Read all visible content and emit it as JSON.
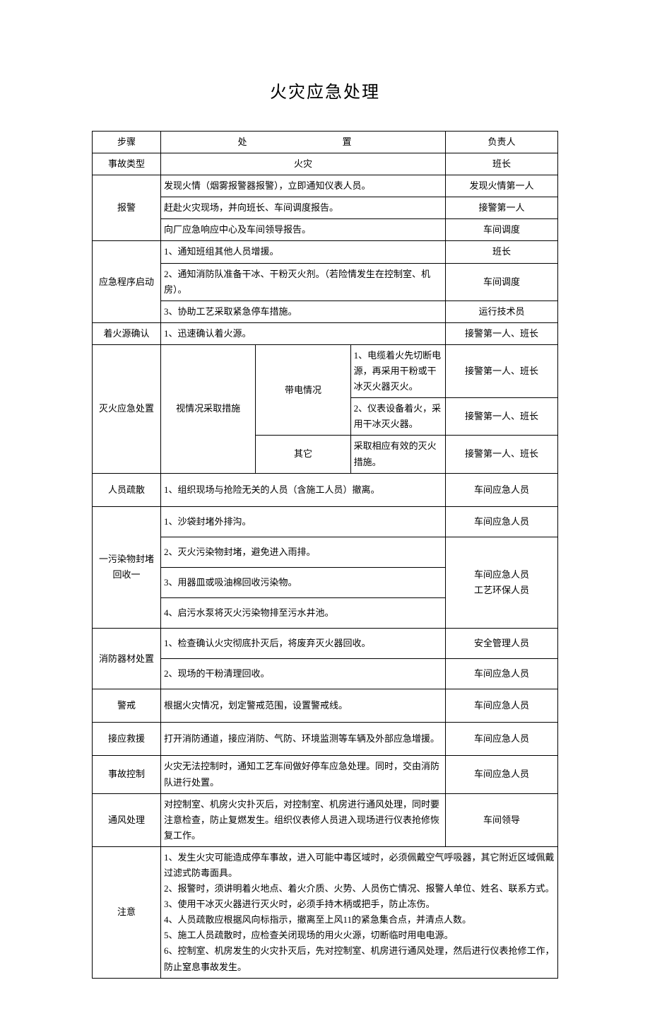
{
  "title": "火灾应急处理",
  "header": {
    "step": "步骤",
    "action": "处　　　置",
    "resp": "负责人"
  },
  "type_row": {
    "step": "事故类型",
    "action": "火灾",
    "resp": "班长"
  },
  "alarm": {
    "step": "报警",
    "r1": {
      "action": "发现火情（烟雾报警器报警），立即通知仪表人员。",
      "resp": "发现火情第一人"
    },
    "r2": {
      "action": "赶赴火灾现场，并向班长、车间调度报告。",
      "resp": "接警第一人"
    },
    "r3": {
      "action": "向厂应急响应中心及车间领导报告。",
      "resp": "车间调度"
    }
  },
  "activate": {
    "step": "应急程序启动",
    "r1": {
      "action": "1、通知班组其他人员增援。",
      "resp": "班长"
    },
    "r2": {
      "action": "2、通知消防队准备干冰、干粉灭火剂。（若险情发生在控制室、机房）。",
      "resp": "车间调度"
    },
    "r3": {
      "action": "3、协助工艺采取紧急停车措施。",
      "resp": "运行技术员"
    }
  },
  "confirm": {
    "step": "着火源确认",
    "action": "1、迅速确认着火源。",
    "resp": "接警第一人、班长"
  },
  "extinguish": {
    "step": "灭火应急处置",
    "sub_outer": "视情况采取措施",
    "sub_elec": "带电情况",
    "sub_other": "其它",
    "r1": {
      "action": "1、电缆着火先切断电源，再采用干粉或干冰灭火器灭火。",
      "resp": "接警第一人、班长"
    },
    "r2": {
      "action": "2、仪表设备着火，采用干冰灭火器。",
      "resp": "接警第一人、班长"
    },
    "r3": {
      "action": "采取相应有效的灭火措施。",
      "resp": "接警第一人、班长"
    }
  },
  "evac": {
    "step": "人员疏散",
    "action": "1、组织现场与抢险无关的人员（含施工人员）撤离。",
    "resp": "车间应急人员"
  },
  "pollute": {
    "step": "一污染物封堵回收一",
    "r1": {
      "action": "1、沙袋封堵外排沟。",
      "resp": "车间应急人员"
    },
    "r2": {
      "action": "2、灭火污染物封堵，避免进入雨排。"
    },
    "r3": {
      "action": "3、用器皿或吸油棉回收污染物。"
    },
    "r4": {
      "action": "4、启污水泵将灭火污染物排至污水井池。"
    },
    "resp234": "车间应急人员\n工艺环保人员"
  },
  "equip": {
    "step": "消防器材处置",
    "r1": {
      "action": "1、检查确认火灾彻底扑灭后，将废弃灭火器回收。",
      "resp": "安全管理人员"
    },
    "r2": {
      "action": "2、现场的干粉清理回收。",
      "resp": "车间应急人员"
    }
  },
  "guard": {
    "step": "警戒",
    "action": "根据火灾情况，划定警戒范围，设置警戒线。",
    "resp": "车间应急人员"
  },
  "rescue": {
    "step": "接应救援",
    "action": "打开消防通道，接应消防、气防、环境监测等车辆及外部应急增援。",
    "resp": "车间应急人员"
  },
  "control": {
    "step": "事故控制",
    "action": "火灾无法控制时，通知工艺车间做好停车应急处理。同时，交由消防队进行处置。",
    "resp": "车间应急人员"
  },
  "vent": {
    "step": "通风处理",
    "action": "对控制室、机房火灾扑灭后，对控制室、机房进行通风处理，同时要注意检查，防止复燃发生。组织仪表修人员进入现场进行仪表抢修恢复工作。",
    "resp": "车间领导"
  },
  "notes": {
    "step": "注意",
    "lines": [
      "1、发生火灾可能造成停车事故，进入可能中毒区域时，必须佩戴空气呼吸器，其它附近区域佩戴过滤式防毒面具。",
      "2、报警时，须讲明着火地点、着火介质、火势、人员伤亡情况、报警人单位、姓名、联系方式。",
      "3、使用干冰灭火器进行灭火时，必须手持木柄或把手，防止冻伤。",
      "4、人员疏散应根据风向标指示，撤离至上风11的紧急集合点，并清点人数。",
      "5、施工人员疏散时，应检查关闭现场的用火火源，切断临时用电电源。",
      "6、控制室、机房发生的火灾扑灭后，先对控制室、机房进行通风处理，然后进行仪表抢修工作，防止窒息事故发生。"
    ]
  }
}
